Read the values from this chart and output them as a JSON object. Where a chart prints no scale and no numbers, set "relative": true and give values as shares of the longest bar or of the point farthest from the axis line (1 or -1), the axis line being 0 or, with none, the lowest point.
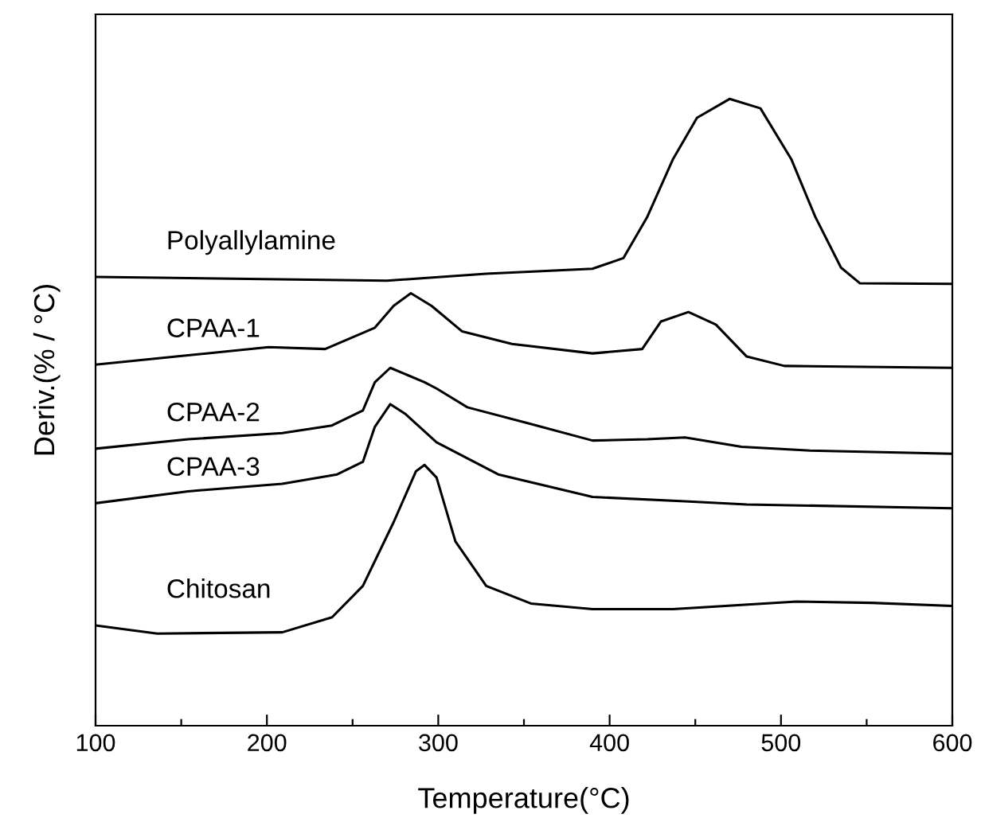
{
  "chart_data": {
    "type": "line",
    "relative": true,
    "xlabel": "Temperature(°C)",
    "ylabel": "Deriv.(% / °C)",
    "xlim": [
      100,
      600
    ],
    "xticks": [
      100,
      {
        "value": 150,
        "label": null
      },
      200,
      {
        "value": 250,
        "label": null
      },
      300,
      {
        "value": 350,
        "label": null
      },
      400,
      {
        "value": 450,
        "label": null
      },
      500,
      {
        "value": 550,
        "label": null
      },
      600
    ],
    "grid": false,
    "legend": false,
    "marker": "none",
    "line_style": "solid",
    "tick_labels": "x",
    "series": [
      {
        "name": "Polyallylamine",
        "color": "#000000",
        "x": [
          100,
          270,
          328,
          390,
          408,
          422,
          437,
          451,
          470,
          488,
          506,
          520,
          535,
          546,
          600
        ],
        "values": [
          0.716,
          0.71,
          0.721,
          0.729,
          0.746,
          0.812,
          0.904,
          0.97,
          1.0,
          0.985,
          0.904,
          0.812,
          0.731,
          0.706,
          0.705
        ]
      },
      {
        "name": "CPAA-1",
        "color": "#000000",
        "x": [
          100,
          154,
          201,
          234,
          263,
          274,
          284,
          296,
          314,
          343,
          390,
          419,
          430,
          446,
          462,
          480,
          502,
          600
        ],
        "values": [
          0.576,
          0.591,
          0.604,
          0.601,
          0.635,
          0.67,
          0.69,
          0.67,
          0.629,
          0.609,
          0.594,
          0.601,
          0.645,
          0.66,
          0.64,
          0.589,
          0.574,
          0.571
        ]
      },
      {
        "name": "CPAA-2",
        "color": "#000000",
        "x": [
          100,
          154,
          209,
          238,
          256,
          263,
          272,
          292,
          299,
          317,
          353,
          390,
          422,
          444,
          477,
          517,
          600
        ],
        "values": [
          0.442,
          0.457,
          0.467,
          0.479,
          0.503,
          0.548,
          0.571,
          0.548,
          0.538,
          0.508,
          0.482,
          0.455,
          0.457,
          0.46,
          0.445,
          0.439,
          0.434
        ]
      },
      {
        "name": "CPAA-3",
        "color": "#000000",
        "x": [
          100,
          154,
          209,
          241,
          256,
          263,
          272,
          281,
          299,
          335,
          390,
          444,
          480,
          600
        ],
        "values": [
          0.355,
          0.374,
          0.386,
          0.401,
          0.421,
          0.477,
          0.513,
          0.497,
          0.452,
          0.401,
          0.365,
          0.358,
          0.353,
          0.347
        ]
      },
      {
        "name": "Chitosan",
        "color": "#000000",
        "x": [
          100,
          136,
          209,
          238,
          256,
          274,
          287,
          292,
          299,
          310,
          328,
          354,
          390,
          437,
          509,
          553,
          600
        ],
        "values": [
          0.16,
          0.147,
          0.149,
          0.173,
          0.223,
          0.325,
          0.406,
          0.416,
          0.396,
          0.294,
          0.223,
          0.195,
          0.186,
          0.186,
          0.198,
          0.196,
          0.191
        ]
      }
    ]
  }
}
